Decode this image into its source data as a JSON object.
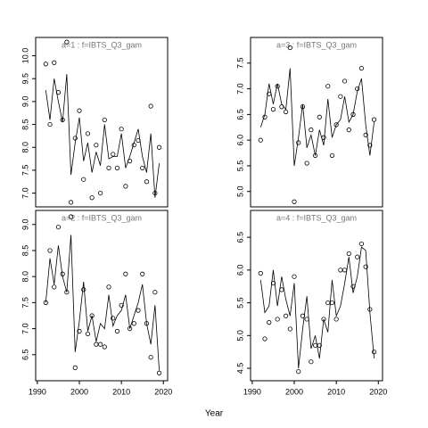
{
  "chart_data": [
    {
      "type": "scatter",
      "title": "a=1  :  f=IBTS_Q3_gam",
      "xlim": [
        1989.6,
        2021
      ],
      "ylim": [
        6.7,
        10.4
      ],
      "yticks": [
        {
          "value": 7,
          "label": "7.0"
        },
        7.5,
        {
          "value": 8,
          "label": "8.0"
        },
        8.5,
        {
          "value": 9,
          "label": "9.0"
        },
        9.5,
        {
          "value": 10,
          "label": "10.0"
        }
      ],
      "x": [
        1992,
        1993,
        1994,
        1995,
        1996,
        1997,
        1998,
        1999,
        2000,
        2001,
        2002,
        2003,
        2004,
        2005,
        2006,
        2007,
        2008,
        2009,
        2010,
        2011,
        2012,
        2013,
        2014,
        2015,
        2016,
        2017,
        2018,
        2019
      ],
      "series": [
        {
          "color": "#000000",
          "marker": "circle",
          "values": [
            9.82,
            8.5,
            9.85,
            9.2,
            8.6,
            10.3,
            6.8,
            8.2,
            8.8,
            7.3,
            8.3,
            6.9,
            8.05,
            7.0,
            8.6,
            7.55,
            7.85,
            7.55,
            8.4,
            7.15,
            7.7,
            8.05,
            8.15,
            7.55,
            7.25,
            8.9,
            7.0,
            8.0
          ]
        },
        {
          "color": "#000000",
          "marker": "line",
          "values": [
            9.25,
            8.6,
            9.5,
            9.0,
            8.55,
            9.6,
            7.4,
            8.1,
            8.65,
            7.7,
            8.1,
            7.45,
            7.9,
            7.6,
            8.5,
            7.75,
            7.8,
            7.8,
            8.3,
            7.55,
            7.8,
            8.1,
            8.4,
            7.8,
            7.45,
            8.3,
            6.9,
            7.65
          ]
        }
      ]
    },
    {
      "type": "scatter",
      "title": "a=3  :  f=IBTS_Q3_gam",
      "xlim": [
        1989.6,
        2021
      ],
      "ylim": [
        4.7,
        8.0
      ],
      "yticks": [
        {
          "value": 5,
          "label": "5.0"
        },
        5.5,
        {
          "value": 6,
          "label": "6.0"
        },
        6.5,
        {
          "value": 7,
          "label": "7.0"
        },
        7.5
      ],
      "x": [
        1992,
        1993,
        1994,
        1995,
        1996,
        1997,
        1998,
        1999,
        2000,
        2001,
        2002,
        2003,
        2004,
        2005,
        2006,
        2007,
        2008,
        2009,
        2010,
        2011,
        2012,
        2013,
        2014,
        2015,
        2016,
        2017,
        2018,
        2019
      ],
      "series": [
        {
          "color": "#000000",
          "marker": "circle",
          "values": [
            6.0,
            6.45,
            6.9,
            6.6,
            7.05,
            6.65,
            6.55,
            7.8,
            4.8,
            5.95,
            6.65,
            5.55,
            6.2,
            5.7,
            6.45,
            6.05,
            7.05,
            5.7,
            6.3,
            6.85,
            7.15,
            6.2,
            6.5,
            7.0,
            7.4,
            6.1,
            5.9,
            6.4
          ]
        },
        {
          "color": "#000000",
          "marker": "line",
          "values": [
            6.25,
            6.5,
            7.1,
            6.7,
            7.1,
            6.7,
            6.6,
            7.4,
            5.5,
            6.05,
            6.7,
            5.85,
            6.1,
            5.7,
            6.2,
            5.9,
            6.8,
            6.05,
            6.3,
            6.4,
            6.85,
            6.35,
            6.5,
            6.95,
            7.2,
            6.3,
            5.7,
            6.35
          ]
        }
      ]
    },
    {
      "type": "scatter",
      "title": "a=2  :  f=IBTS_Q3_gam",
      "xlim": [
        1989.6,
        2021
      ],
      "ylim": [
        6.0,
        9.27
      ],
      "xticks": [
        1990,
        2000,
        2010,
        2020
      ],
      "yticks": [
        6.5,
        {
          "value": 7,
          "label": "7.0"
        },
        7.5,
        {
          "value": 8,
          "label": "8.0"
        },
        8.5,
        {
          "value": 9,
          "label": "9.0"
        }
      ],
      "x": [
        1992,
        1993,
        1994,
        1995,
        1996,
        1997,
        1998,
        1999,
        2000,
        2001,
        2002,
        2003,
        2004,
        2005,
        2006,
        2007,
        2008,
        2009,
        2010,
        2011,
        2012,
        2013,
        2014,
        2015,
        2016,
        2017,
        2018,
        2019
      ],
      "series": [
        {
          "color": "#000000",
          "marker": "circle",
          "values": [
            7.5,
            8.5,
            7.8,
            8.95,
            8.05,
            7.7,
            9.15,
            6.25,
            6.95,
            7.75,
            6.9,
            7.25,
            6.7,
            6.7,
            6.65,
            7.8,
            7.2,
            6.95,
            7.45,
            8.05,
            7.0,
            7.1,
            7.35,
            8.05,
            7.1,
            6.45,
            7.7,
            6.15
          ]
        },
        {
          "color": "#000000",
          "marker": "line",
          "values": [
            7.5,
            8.35,
            7.85,
            8.6,
            8.0,
            7.7,
            8.8,
            6.55,
            7.15,
            7.9,
            6.95,
            7.25,
            6.75,
            7.1,
            7.0,
            7.65,
            7.05,
            7.25,
            7.35,
            7.65,
            7.0,
            7.25,
            7.5,
            7.85,
            7.1,
            6.7,
            7.45,
            6.2
          ]
        }
      ]
    },
    {
      "type": "scatter",
      "title": "a=4  :  f=IBTS_Q3_gam",
      "xlim": [
        1989.6,
        2021
      ],
      "ylim": [
        4.31,
        6.91
      ],
      "xticks": [
        1990,
        2000,
        2010,
        2020
      ],
      "yticks": [
        4.5,
        {
          "value": 5,
          "label": "5.0"
        },
        5.5,
        {
          "value": 6,
          "label": "6.0"
        },
        6.5
      ],
      "x": [
        1992,
        1993,
        1994,
        1995,
        1996,
        1997,
        1998,
        1999,
        2000,
        2001,
        2002,
        2003,
        2004,
        2005,
        2006,
        2007,
        2008,
        2009,
        2010,
        2011,
        2012,
        2013,
        2014,
        2015,
        2016,
        2017,
        2018,
        2019
      ],
      "series": [
        {
          "color": "#000000",
          "marker": "circle",
          "values": [
            5.95,
            4.95,
            5.2,
            5.8,
            5.25,
            5.7,
            5.3,
            5.1,
            5.9,
            4.45,
            5.3,
            5.25,
            4.6,
            4.85,
            4.85,
            5.25,
            5.5,
            5.5,
            5.25,
            6.0,
            6.0,
            6.25,
            5.75,
            6.2,
            6.4,
            6.05,
            5.4,
            4.75
          ]
        },
        {
          "color": "#000000",
          "marker": "line",
          "values": [
            5.85,
            5.35,
            5.45,
            6.0,
            5.45,
            5.9,
            5.55,
            5.3,
            5.8,
            4.5,
            5.1,
            5.6,
            4.8,
            5.0,
            4.65,
            5.25,
            5.05,
            5.85,
            5.3,
            5.45,
            5.8,
            6.2,
            5.65,
            5.9,
            6.35,
            6.3,
            5.35,
            4.65
          ]
        }
      ]
    }
  ],
  "xlabel": "Year"
}
